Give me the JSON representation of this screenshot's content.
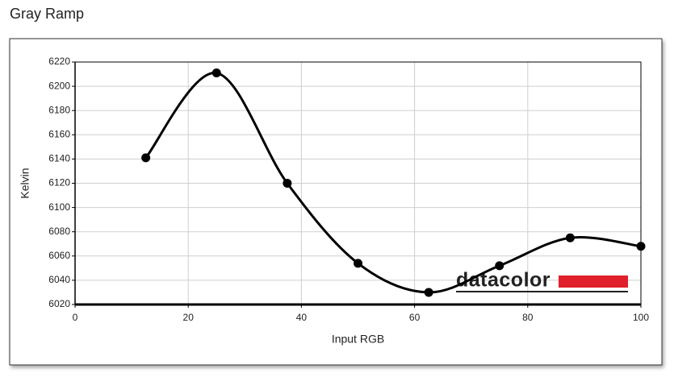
{
  "chart_data": {
    "type": "line",
    "title": "Gray Ramp",
    "x_label": "Input RGB",
    "y_label": "Kelvin",
    "x": [
      12.5,
      25,
      37.5,
      50,
      62.5,
      75,
      87.5,
      100
    ],
    "values": [
      6141,
      6211,
      6120,
      6054,
      6030,
      6052,
      6075,
      6068
    ],
    "color": "#000000",
    "smooth": true,
    "grid": true,
    "xlim": [
      0,
      100
    ],
    "xticks": [
      0,
      20,
      40,
      60,
      80,
      100
    ],
    "ylim": [
      6020,
      6220
    ],
    "yticks": [
      6020,
      6040,
      6060,
      6080,
      6100,
      6120,
      6140,
      6160,
      6180,
      6200,
      6220
    ],
    "watermark": "datacolor"
  }
}
